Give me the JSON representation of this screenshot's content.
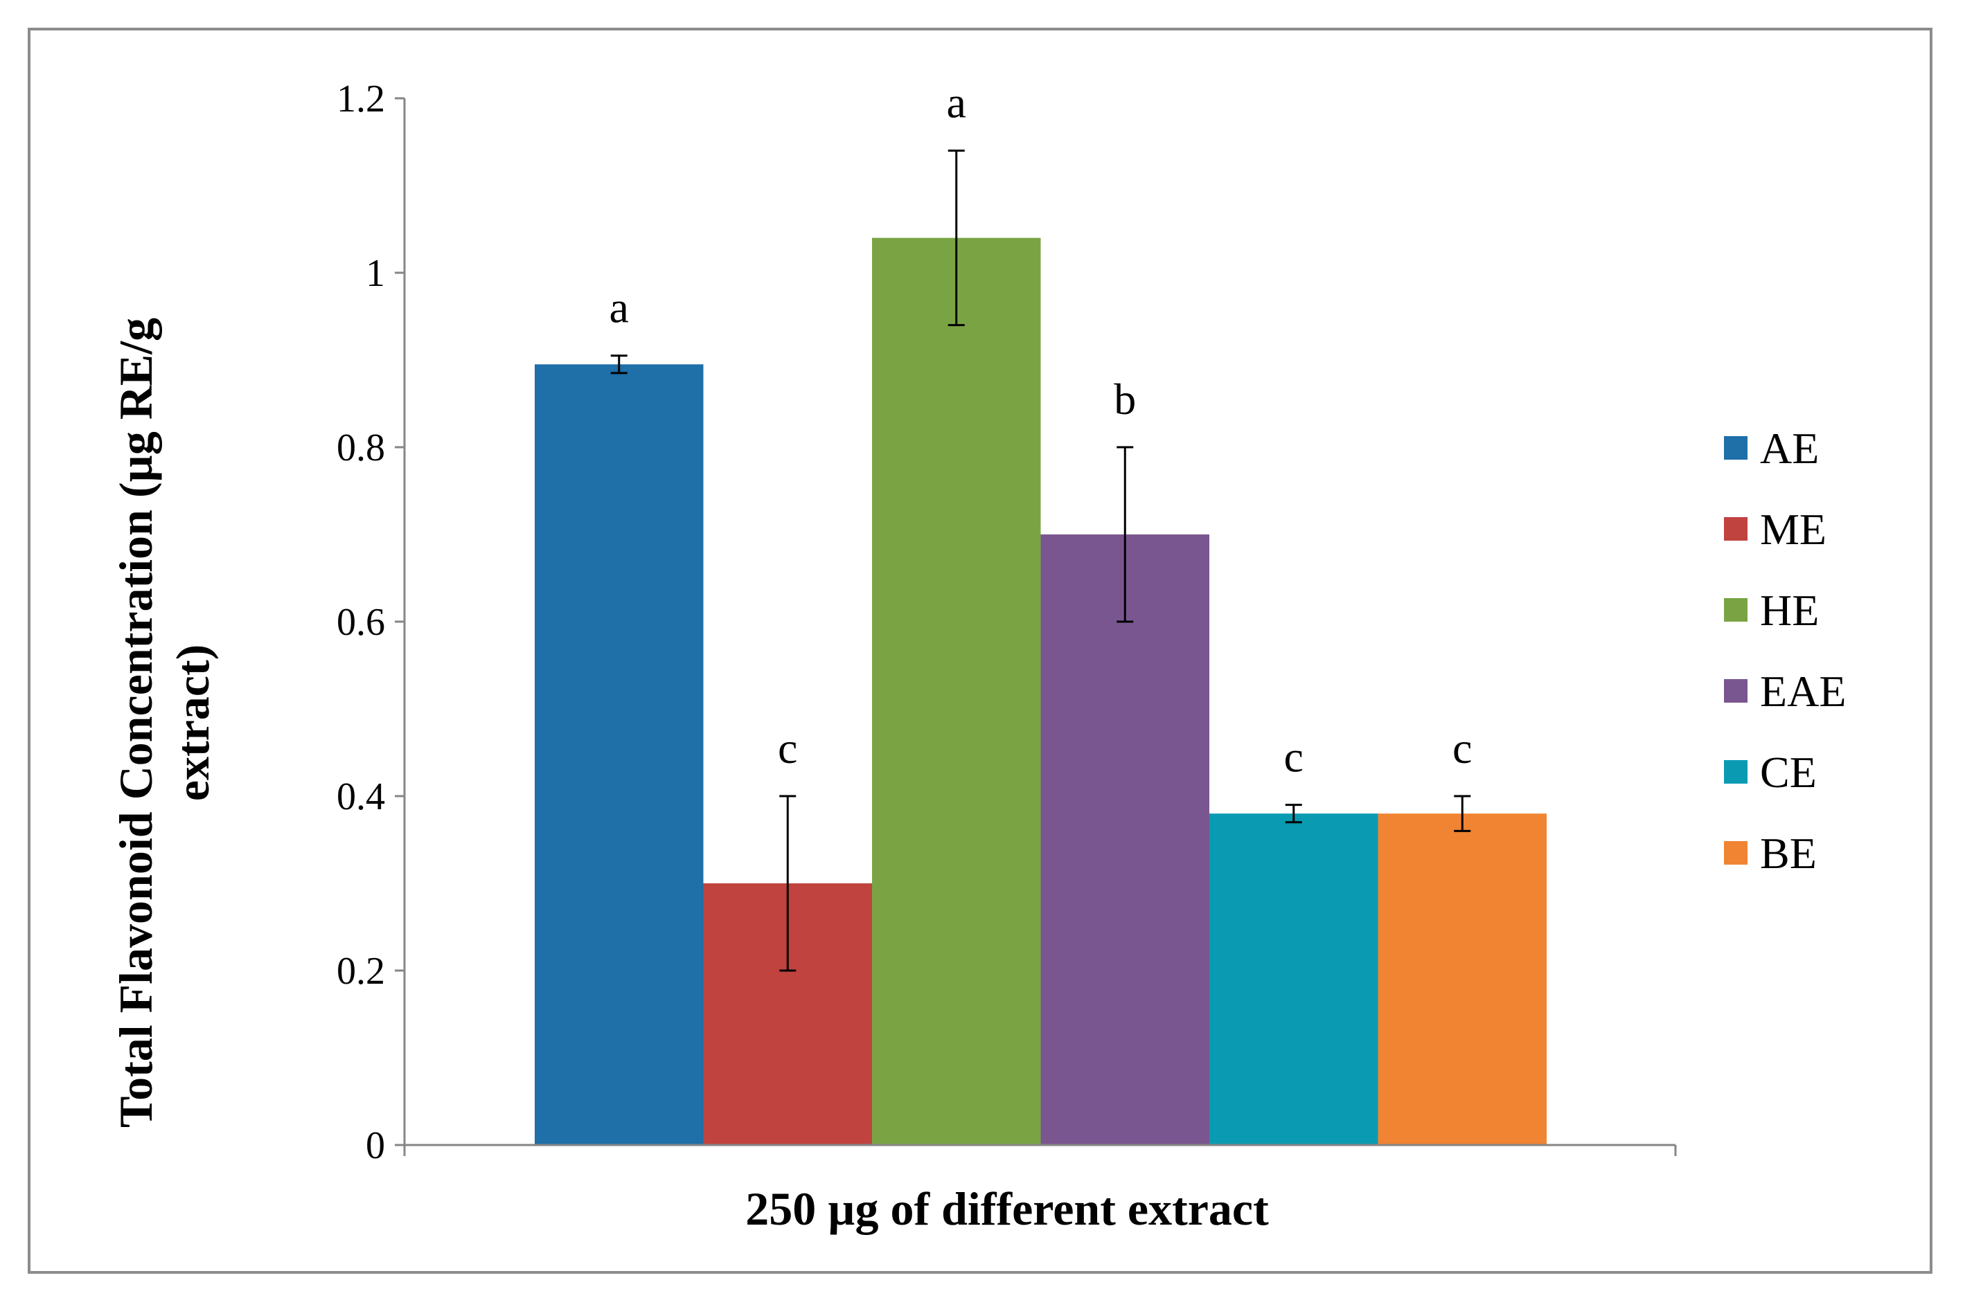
{
  "chart_data": {
    "type": "bar",
    "title": "",
    "xlabel": "250 µg of different extract",
    "ylabel_lines": [
      "Total Flavonoid Concentration (µg RE/g",
      "extract)"
    ],
    "ylim": [
      0,
      1.2
    ],
    "yticks": [
      0,
      0.2,
      0.4,
      0.6,
      0.8,
      1,
      1.2
    ],
    "ytick_labels": [
      "0",
      "0.2",
      "0.4",
      "0.6",
      "0.8",
      "1",
      "1.2"
    ],
    "category": "250 µg of different extract",
    "legend_position": "right",
    "grid": false,
    "series": [
      {
        "name": "AE",
        "value": 0.895,
        "error": 0.01,
        "letter": "a",
        "color": "#1f6fa8"
      },
      {
        "name": "ME",
        "value": 0.3,
        "error": 0.1,
        "letter": "c",
        "color": "#c0433f"
      },
      {
        "name": "HE",
        "value": 1.04,
        "error": 0.1,
        "letter": "a",
        "color": "#7aa444"
      },
      {
        "name": "EAE",
        "value": 0.7,
        "error": 0.1,
        "letter": "b",
        "color": "#7a5690"
      },
      {
        "name": "CE",
        "value": 0.38,
        "error": 0.01,
        "letter": "c",
        "color": "#0a9bb2"
      },
      {
        "name": "BE",
        "value": 0.38,
        "error": 0.02,
        "letter": "c",
        "color": "#f08432"
      }
    ]
  }
}
